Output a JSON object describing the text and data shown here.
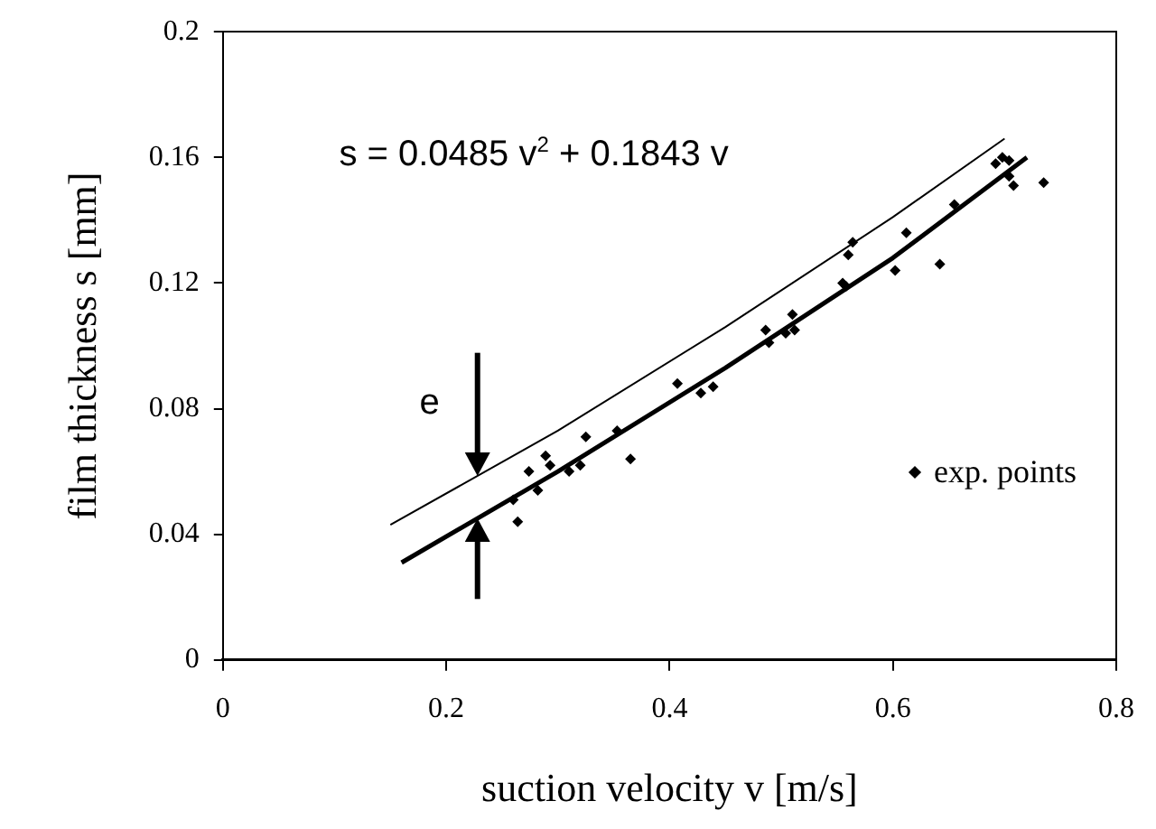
{
  "chart_data": {
    "type": "scatter",
    "xlabel": "suction velocity v [m/s]",
    "ylabel": "film thickness s [mm]",
    "xlim": [
      0,
      0.8
    ],
    "xticks": [
      0,
      0.2,
      0.4,
      0.6,
      0.8
    ],
    "ylim": [
      0,
      0.2
    ],
    "yticks": [
      0,
      0.04,
      0.08,
      0.12,
      0.16,
      0.2
    ],
    "grid": false,
    "legend": "right",
    "annotations": [
      "s = 0.0485 v$^{2}$ + 0.1843 v",
      "e"
    ],
    "series": [
      {
        "name": "exp. points",
        "marker": "diamond",
        "color": "#000000",
        "x": [
          0.26,
          0.264,
          0.274,
          0.282,
          0.289,
          0.293,
          0.31,
          0.32,
          0.325,
          0.353,
          0.365,
          0.407,
          0.428,
          0.439,
          0.486,
          0.489,
          0.504,
          0.51,
          0.512,
          0.555,
          0.558,
          0.56,
          0.564,
          0.602,
          0.612,
          0.642,
          0.655,
          0.692,
          0.698,
          0.704,
          0.704,
          0.708,
          0.735
        ],
        "values": [
          0.051,
          0.044,
          0.06,
          0.054,
          0.065,
          0.062,
          0.06,
          0.062,
          0.071,
          0.073,
          0.064,
          0.088,
          0.085,
          0.087,
          0.105,
          0.101,
          0.104,
          0.11,
          0.105,
          0.12,
          0.119,
          0.129,
          0.133,
          0.124,
          0.136,
          0.126,
          0.145,
          0.158,
          0.16,
          0.159,
          0.154,
          0.151,
          0.152
        ]
      },
      {
        "type": "line",
        "marker": "none",
        "color": "#000000",
        "x": [
          0.16,
          0.3,
          0.45,
          0.6,
          0.72
        ],
        "values": [
          0.031,
          0.06,
          0.093,
          0.128,
          0.16
        ]
      },
      {
        "type": "line",
        "marker": "none",
        "color": "#000000",
        "x": [
          0.15,
          0.3,
          0.45,
          0.6,
          0.7
        ],
        "values": [
          0.043,
          0.073,
          0.106,
          0.141,
          0.166
        ]
      }
    ]
  }
}
